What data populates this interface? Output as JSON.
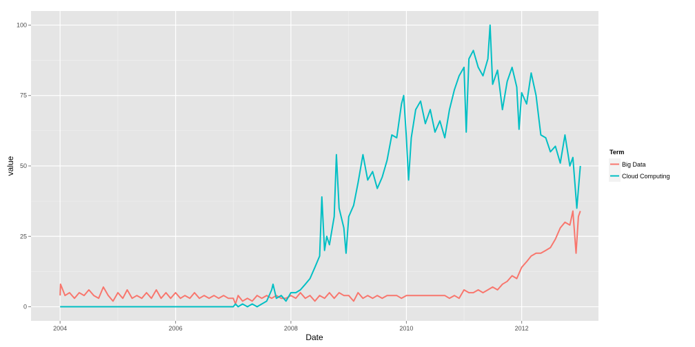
{
  "chart_data": {
    "type": "line",
    "title": "",
    "xlabel": "Date",
    "ylabel": "value",
    "xlim": [
      "2003-07-01",
      "2013-05-01"
    ],
    "ylim": [
      -5,
      105
    ],
    "x_ticks": [
      "2004",
      "2006",
      "2008",
      "2010",
      "2012"
    ],
    "y_ticks": [
      0,
      25,
      50,
      75,
      100
    ],
    "grid": true,
    "legend": {
      "title": "Term",
      "placement": "right"
    },
    "series": [
      {
        "name": "Big Data",
        "color": "#F8766D",
        "points": [
          [
            "2004-01-01",
            4
          ],
          [
            "2004-01-04",
            8
          ],
          [
            "2004-02-01",
            4
          ],
          [
            "2004-03-01",
            5
          ],
          [
            "2004-04-01",
            3
          ],
          [
            "2004-05-01",
            5
          ],
          [
            "2004-06-01",
            4
          ],
          [
            "2004-07-01",
            6
          ],
          [
            "2004-08-01",
            4
          ],
          [
            "2004-09-01",
            3
          ],
          [
            "2004-10-01",
            7
          ],
          [
            "2004-11-01",
            4
          ],
          [
            "2004-12-01",
            2
          ],
          [
            "2005-01-01",
            5
          ],
          [
            "2005-02-01",
            3
          ],
          [
            "2005-03-01",
            6
          ],
          [
            "2005-04-01",
            3
          ],
          [
            "2005-05-01",
            4
          ],
          [
            "2005-06-01",
            3
          ],
          [
            "2005-07-01",
            5
          ],
          [
            "2005-08-01",
            3
          ],
          [
            "2005-09-01",
            6
          ],
          [
            "2005-10-01",
            3
          ],
          [
            "2005-11-01",
            5
          ],
          [
            "2005-12-01",
            3
          ],
          [
            "2006-01-01",
            5
          ],
          [
            "2006-02-01",
            3
          ],
          [
            "2006-03-01",
            4
          ],
          [
            "2006-04-01",
            3
          ],
          [
            "2006-05-01",
            5
          ],
          [
            "2006-06-01",
            3
          ],
          [
            "2006-07-01",
            4
          ],
          [
            "2006-08-01",
            3
          ],
          [
            "2006-09-01",
            4
          ],
          [
            "2006-10-01",
            3
          ],
          [
            "2006-11-01",
            4
          ],
          [
            "2006-12-01",
            3
          ],
          [
            "2007-01-01",
            3
          ],
          [
            "2007-01-15",
            1
          ],
          [
            "2007-02-01",
            4
          ],
          [
            "2007-03-01",
            2
          ],
          [
            "2007-04-01",
            3
          ],
          [
            "2007-05-01",
            2
          ],
          [
            "2007-06-01",
            4
          ],
          [
            "2007-07-01",
            3
          ],
          [
            "2007-08-01",
            4
          ],
          [
            "2007-09-01",
            3
          ],
          [
            "2007-10-01",
            4
          ],
          [
            "2007-11-01",
            3
          ],
          [
            "2007-12-01",
            3
          ],
          [
            "2008-01-01",
            4
          ],
          [
            "2008-02-01",
            3
          ],
          [
            "2008-03-01",
            5
          ],
          [
            "2008-04-01",
            3
          ],
          [
            "2008-05-01",
            4
          ],
          [
            "2008-06-01",
            2
          ],
          [
            "2008-07-01",
            4
          ],
          [
            "2008-08-01",
            3
          ],
          [
            "2008-09-01",
            5
          ],
          [
            "2008-10-01",
            3
          ],
          [
            "2008-11-01",
            5
          ],
          [
            "2008-12-01",
            4
          ],
          [
            "2009-01-01",
            4
          ],
          [
            "2009-02-01",
            2
          ],
          [
            "2009-03-01",
            5
          ],
          [
            "2009-04-01",
            3
          ],
          [
            "2009-05-01",
            4
          ],
          [
            "2009-06-01",
            3
          ],
          [
            "2009-07-01",
            4
          ],
          [
            "2009-08-01",
            3
          ],
          [
            "2009-09-01",
            4
          ],
          [
            "2009-10-01",
            4
          ],
          [
            "2009-11-01",
            4
          ],
          [
            "2009-12-01",
            3
          ],
          [
            "2010-01-01",
            4
          ],
          [
            "2010-03-01",
            4
          ],
          [
            "2010-05-01",
            4
          ],
          [
            "2010-07-01",
            4
          ],
          [
            "2010-09-01",
            4
          ],
          [
            "2010-10-01",
            3
          ],
          [
            "2010-11-01",
            4
          ],
          [
            "2010-12-01",
            3
          ],
          [
            "2011-01-01",
            6
          ],
          [
            "2011-02-01",
            5
          ],
          [
            "2011-03-01",
            5
          ],
          [
            "2011-04-01",
            6
          ],
          [
            "2011-05-01",
            5
          ],
          [
            "2011-06-01",
            6
          ],
          [
            "2011-07-01",
            7
          ],
          [
            "2011-08-01",
            6
          ],
          [
            "2011-09-01",
            8
          ],
          [
            "2011-10-01",
            9
          ],
          [
            "2011-11-01",
            11
          ],
          [
            "2011-12-01",
            10
          ],
          [
            "2012-01-01",
            14
          ],
          [
            "2012-02-01",
            16
          ],
          [
            "2012-03-01",
            18
          ],
          [
            "2012-04-01",
            19
          ],
          [
            "2012-05-01",
            19
          ],
          [
            "2012-06-01",
            20
          ],
          [
            "2012-07-01",
            21
          ],
          [
            "2012-08-01",
            24
          ],
          [
            "2012-09-01",
            28
          ],
          [
            "2012-10-01",
            30
          ],
          [
            "2012-11-01",
            29
          ],
          [
            "2012-11-20",
            34
          ],
          [
            "2012-12-10",
            19
          ],
          [
            "2012-12-25",
            32
          ],
          [
            "2013-01-06",
            34
          ]
        ]
      },
      {
        "name": "Cloud Computing",
        "color": "#00BFC4",
        "points": [
          [
            "2004-01-01",
            0
          ],
          [
            "2007-01-01",
            0
          ],
          [
            "2007-01-15",
            1
          ],
          [
            "2007-02-01",
            0
          ],
          [
            "2007-03-01",
            1
          ],
          [
            "2007-04-01",
            0
          ],
          [
            "2007-05-01",
            1
          ],
          [
            "2007-06-01",
            0
          ],
          [
            "2007-07-01",
            1
          ],
          [
            "2007-08-01",
            2
          ],
          [
            "2007-09-01",
            6
          ],
          [
            "2007-09-10",
            8
          ],
          [
            "2007-10-01",
            3
          ],
          [
            "2007-11-01",
            4
          ],
          [
            "2007-12-01",
            2
          ],
          [
            "2008-01-01",
            5
          ],
          [
            "2008-02-01",
            5
          ],
          [
            "2008-03-01",
            6
          ],
          [
            "2008-04-01",
            8
          ],
          [
            "2008-05-01",
            10
          ],
          [
            "2008-06-01",
            14
          ],
          [
            "2008-07-01",
            18
          ],
          [
            "2008-07-15",
            39
          ],
          [
            "2008-08-01",
            20
          ],
          [
            "2008-08-15",
            25
          ],
          [
            "2008-09-01",
            22
          ],
          [
            "2008-10-01",
            32
          ],
          [
            "2008-10-15",
            54
          ],
          [
            "2008-11-01",
            35
          ],
          [
            "2008-12-01",
            28
          ],
          [
            "2008-12-15",
            19
          ],
          [
            "2009-01-01",
            32
          ],
          [
            "2009-02-01",
            36
          ],
          [
            "2009-03-01",
            44
          ],
          [
            "2009-04-01",
            54
          ],
          [
            "2009-05-01",
            45
          ],
          [
            "2009-06-01",
            48
          ],
          [
            "2009-07-01",
            42
          ],
          [
            "2009-08-01",
            46
          ],
          [
            "2009-09-01",
            52
          ],
          [
            "2009-10-01",
            61
          ],
          [
            "2009-11-01",
            60
          ],
          [
            "2009-12-01",
            72
          ],
          [
            "2009-12-15",
            75
          ],
          [
            "2010-01-01",
            60
          ],
          [
            "2010-01-15",
            45
          ],
          [
            "2010-02-01",
            60
          ],
          [
            "2010-03-01",
            70
          ],
          [
            "2010-04-01",
            73
          ],
          [
            "2010-05-01",
            65
          ],
          [
            "2010-06-01",
            70
          ],
          [
            "2010-07-01",
            62
          ],
          [
            "2010-08-01",
            66
          ],
          [
            "2010-09-01",
            60
          ],
          [
            "2010-10-01",
            70
          ],
          [
            "2010-11-01",
            77
          ],
          [
            "2010-12-01",
            82
          ],
          [
            "2011-01-01",
            85
          ],
          [
            "2011-01-15",
            62
          ],
          [
            "2011-02-01",
            88
          ],
          [
            "2011-03-01",
            91
          ],
          [
            "2011-04-01",
            85
          ],
          [
            "2011-05-01",
            82
          ],
          [
            "2011-06-01",
            88
          ],
          [
            "2011-06-15",
            100
          ],
          [
            "2011-07-01",
            79
          ],
          [
            "2011-08-01",
            84
          ],
          [
            "2011-09-01",
            70
          ],
          [
            "2011-10-01",
            80
          ],
          [
            "2011-11-01",
            85
          ],
          [
            "2011-12-01",
            78
          ],
          [
            "2011-12-15",
            63
          ],
          [
            "2012-01-01",
            76
          ],
          [
            "2012-02-01",
            72
          ],
          [
            "2012-03-01",
            83
          ],
          [
            "2012-04-01",
            75
          ],
          [
            "2012-05-01",
            61
          ],
          [
            "2012-06-01",
            60
          ],
          [
            "2012-07-01",
            55
          ],
          [
            "2012-08-01",
            57
          ],
          [
            "2012-09-01",
            51
          ],
          [
            "2012-10-01",
            61
          ],
          [
            "2012-11-01",
            50
          ],
          [
            "2012-11-20",
            53
          ],
          [
            "2012-12-15",
            35
          ],
          [
            "2013-01-06",
            50
          ]
        ]
      }
    ]
  }
}
